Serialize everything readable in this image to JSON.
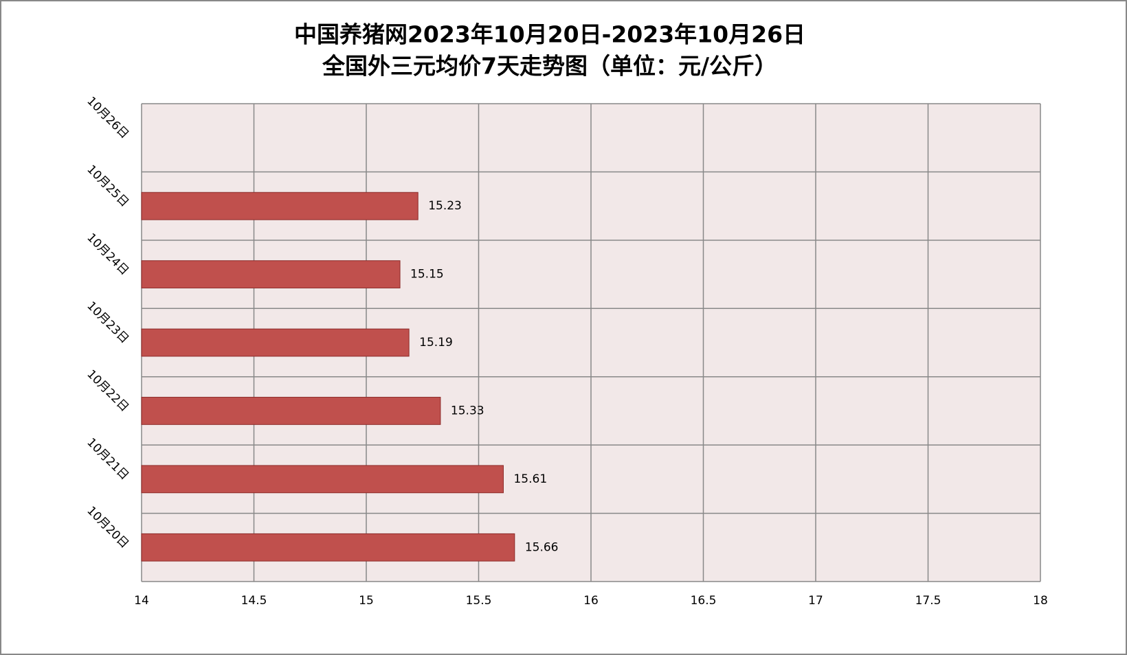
{
  "chart_data": {
    "type": "bar",
    "orientation": "horizontal",
    "title": [
      "中国养猪网2023年10月20日-2023年10月26日",
      "全国外三元均价7天走势图（单位：元/公斤）"
    ],
    "categories": [
      "10月20日",
      "10月21日",
      "10月22日",
      "10月23日",
      "10月24日",
      "10月25日",
      "10月26日"
    ],
    "values": [
      15.66,
      15.61,
      15.33,
      15.19,
      15.15,
      15.23,
      null
    ],
    "color": "#c0504d",
    "xlim": [
      14,
      18
    ],
    "xticks": [
      14,
      14.5,
      15,
      15.5,
      16,
      16.5,
      17,
      17.5,
      18
    ],
    "grid": true
  }
}
